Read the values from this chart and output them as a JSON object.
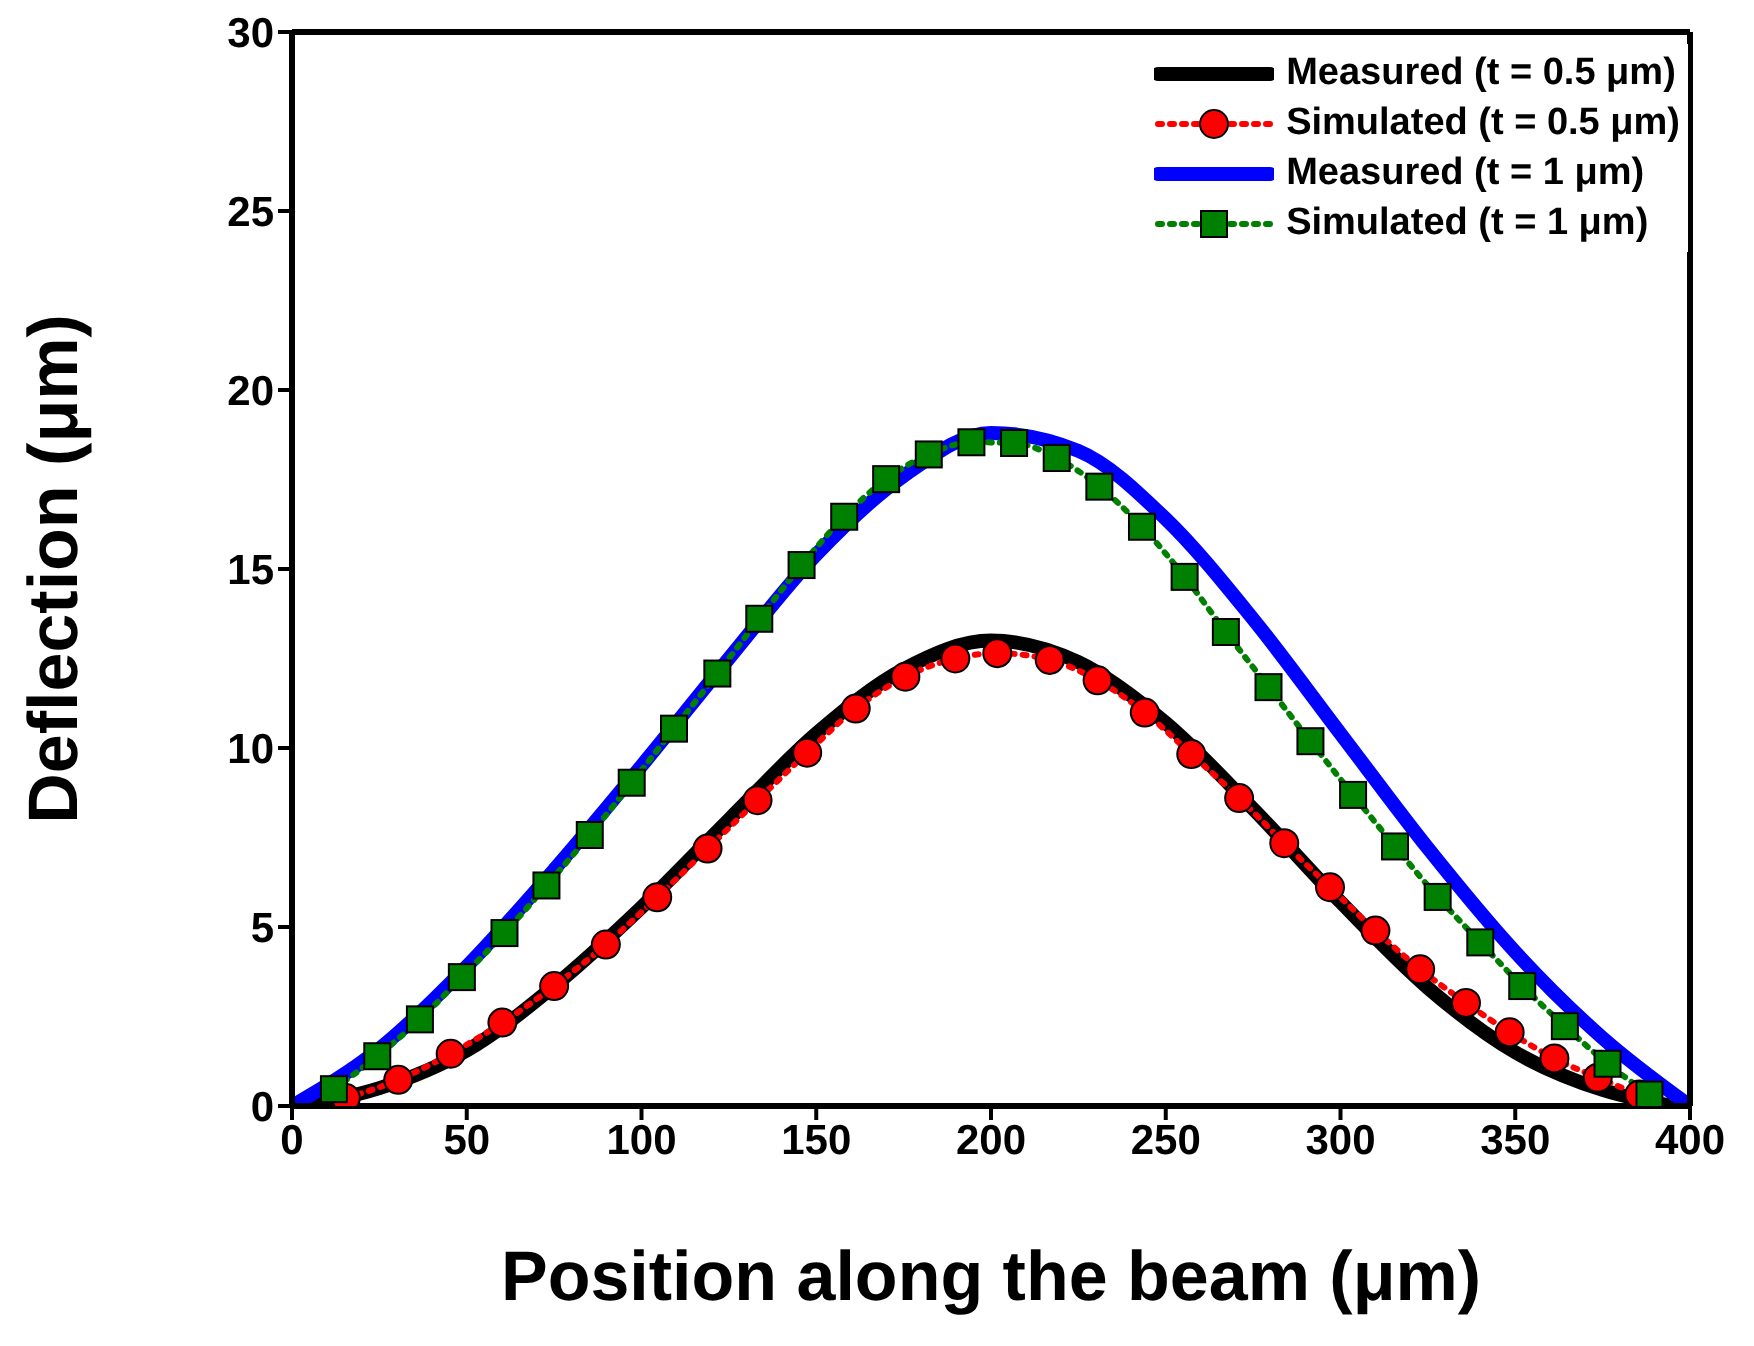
{
  "chart_data": {
    "type": "line",
    "xlabel": "Position along the beam (μm)",
    "ylabel": "Deflection (μm)",
    "xlim": [
      0,
      400
    ],
    "xticks": [
      0,
      50,
      100,
      150,
      200,
      250,
      300,
      350,
      400
    ],
    "ylim": [
      0,
      30
    ],
    "yticks": [
      0,
      5,
      10,
      15,
      20,
      25,
      30
    ],
    "legend": "top right",
    "series": [
      {
        "name": "Measured (t = 0.5 μm)",
        "color": "#000000",
        "marker": "none",
        "line_style": "solid",
        "x": [
          0,
          25,
          50,
          75,
          100,
          125,
          150,
          175,
          200,
          225,
          250,
          275,
          300,
          325,
          350,
          375,
          395
        ],
        "values": [
          0,
          0.5,
          1.55,
          3.35,
          5.55,
          8.0,
          10.4,
          12.2,
          13.0,
          12.4,
          10.7,
          8.3,
          5.7,
          3.3,
          1.5,
          0.45,
          0
        ]
      },
      {
        "name": "Simulated (t = 0.5 μm)",
        "color": "#ff0000",
        "marker": "circle",
        "line_style": "dotted",
        "x": [
          15.4,
          30.4,
          45.4,
          60.2,
          75.0,
          89.8,
          104.5,
          118.9,
          133.2,
          147.4,
          161.3,
          175.5,
          189.8,
          201.8,
          216.8,
          230.5,
          244.0,
          257.3,
          271.0,
          283.9,
          297.0,
          310.0,
          322.8,
          335.9,
          348.4,
          361.2,
          373.6,
          385.5
        ],
        "values": [
          0.22,
          0.73,
          1.46,
          2.33,
          3.35,
          4.51,
          5.83,
          7.19,
          8.54,
          9.87,
          11.1,
          11.99,
          12.5,
          12.65,
          12.46,
          11.89,
          10.99,
          9.83,
          8.6,
          7.34,
          6.11,
          4.9,
          3.82,
          2.88,
          2.06,
          1.33,
          0.79,
          0.32
        ]
      },
      {
        "name": "Measured (t = 1 μm)",
        "color": "#0000ff",
        "marker": "none",
        "line_style": "solid",
        "x": [
          0,
          25,
          50,
          75,
          100,
          125,
          150,
          175,
          200,
          225,
          250,
          275,
          300,
          325,
          350,
          375,
          400
        ],
        "values": [
          0,
          1.6,
          3.9,
          6.6,
          9.5,
          12.5,
          15.4,
          17.6,
          18.8,
          18.3,
          16.4,
          13.6,
          10.4,
          7.2,
          4.3,
          1.9,
          0
        ]
      },
      {
        "name": "Simulated (t = 1 μm)",
        "color": "#008000",
        "marker": "square",
        "line_style": "dotted",
        "x": [
          12.0,
          24.4,
          36.6,
          48.6,
          60.8,
          72.8,
          85.2,
          97.2,
          109.3,
          121.7,
          133.7,
          145.8,
          158.0,
          170.0,
          182.2,
          194.4,
          206.6,
          218.8,
          231.0,
          243.2,
          255.4,
          267.2,
          279.4,
          291.4,
          303.6,
          315.6,
          327.8,
          340.0,
          352.0,
          364.2,
          376.4,
          388.4
        ],
        "values": [
          0.47,
          1.39,
          2.42,
          3.6,
          4.83,
          6.16,
          7.57,
          9.03,
          10.54,
          12.08,
          13.61,
          15.11,
          16.46,
          17.51,
          18.2,
          18.54,
          18.52,
          18.1,
          17.3,
          16.18,
          14.78,
          13.24,
          11.7,
          10.19,
          8.69,
          7.25,
          5.84,
          4.57,
          3.35,
          2.23,
          1.18,
          0.32
        ]
      }
    ]
  }
}
